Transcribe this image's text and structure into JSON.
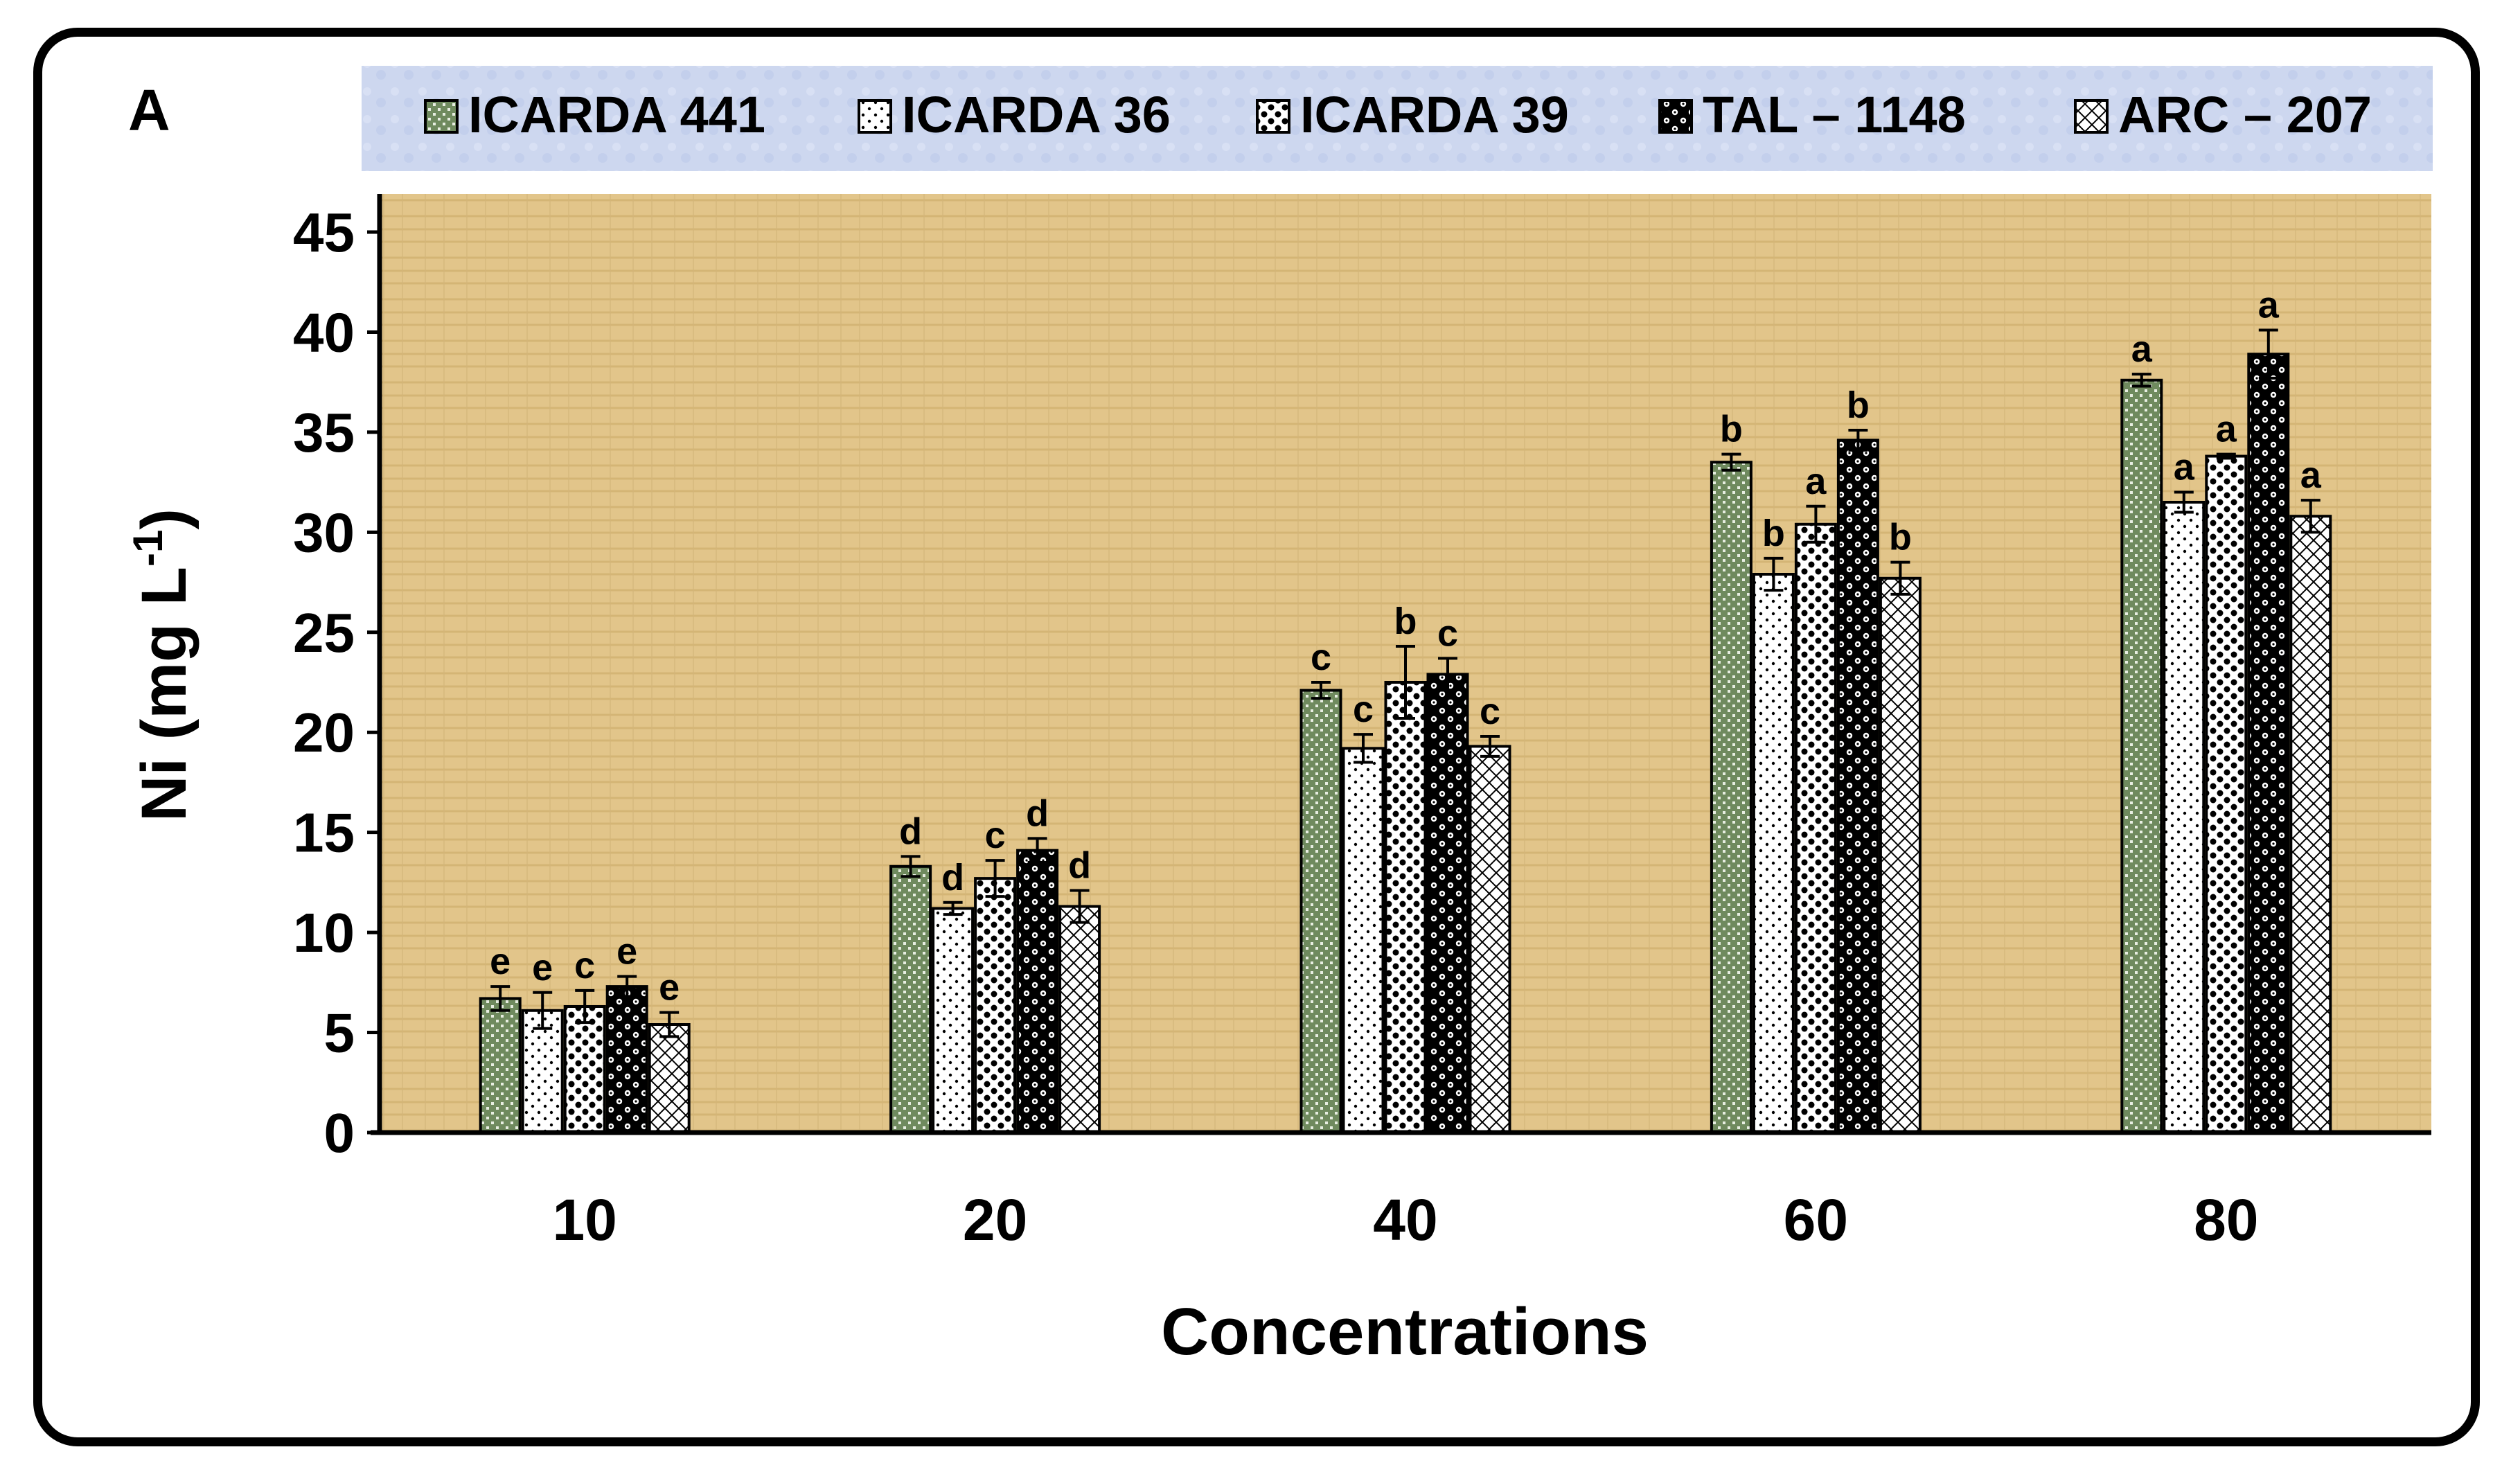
{
  "panel_label": "A",
  "chart_data": {
    "type": "bar",
    "title": "",
    "xlabel": "Concentrations",
    "ylabel_main": "Ni (mg L",
    "ylabel_sup": "-1",
    "ylabel_close": ")",
    "ylim": [
      0,
      45
    ],
    "yticks": [
      0,
      5,
      10,
      15,
      20,
      25,
      30,
      35,
      40,
      45
    ],
    "categories": [
      "10",
      "20",
      "40",
      "60",
      "80"
    ],
    "legend_position": "top",
    "series": [
      {
        "name": "ICARDA 441",
        "values": [
          6.7,
          13.3,
          22.1,
          33.5,
          37.6
        ],
        "errors": [
          0.6,
          0.5,
          0.4,
          0.4,
          0.3
        ],
        "letters": [
          "e",
          "d",
          "c",
          "b",
          "a"
        ]
      },
      {
        "name": "ICARDA 36",
        "values": [
          6.1,
          11.2,
          19.2,
          27.9,
          31.5
        ],
        "errors": [
          0.9,
          0.3,
          0.7,
          0.8,
          0.5
        ],
        "letters": [
          "e",
          "d",
          "c",
          "b",
          "a"
        ]
      },
      {
        "name": "ICARDA 39",
        "values": [
          6.3,
          12.7,
          22.5,
          30.4,
          33.8
        ],
        "errors": [
          0.8,
          0.9,
          1.8,
          0.9,
          0.1
        ],
        "letters": [
          "c",
          "c",
          "b",
          "a",
          "a"
        ]
      },
      {
        "name": "TAL – 1148",
        "values": [
          7.3,
          14.1,
          22.9,
          34.6,
          38.9
        ],
        "errors": [
          0.5,
          0.6,
          0.8,
          0.5,
          1.2
        ],
        "letters": [
          "e",
          "d",
          "c",
          "b",
          "a"
        ]
      },
      {
        "name": "ARC – 207",
        "values": [
          5.4,
          11.3,
          19.3,
          27.7,
          30.8
        ],
        "errors": [
          0.6,
          0.8,
          0.5,
          0.8,
          0.8
        ],
        "letters": [
          "e",
          "d",
          "c",
          "b",
          "a"
        ]
      }
    ],
    "colors": {
      "plot_background": "#e2c58a",
      "legend_background": "#cdd7ef",
      "series_fill": [
        "#6f8a5e",
        "#ffffff",
        "#ffffff",
        "#ffffff",
        "#ffffff"
      ],
      "series_pattern": [
        "#ffffff",
        "#000000",
        "#000000",
        "#000000",
        "#000000"
      ]
    }
  }
}
